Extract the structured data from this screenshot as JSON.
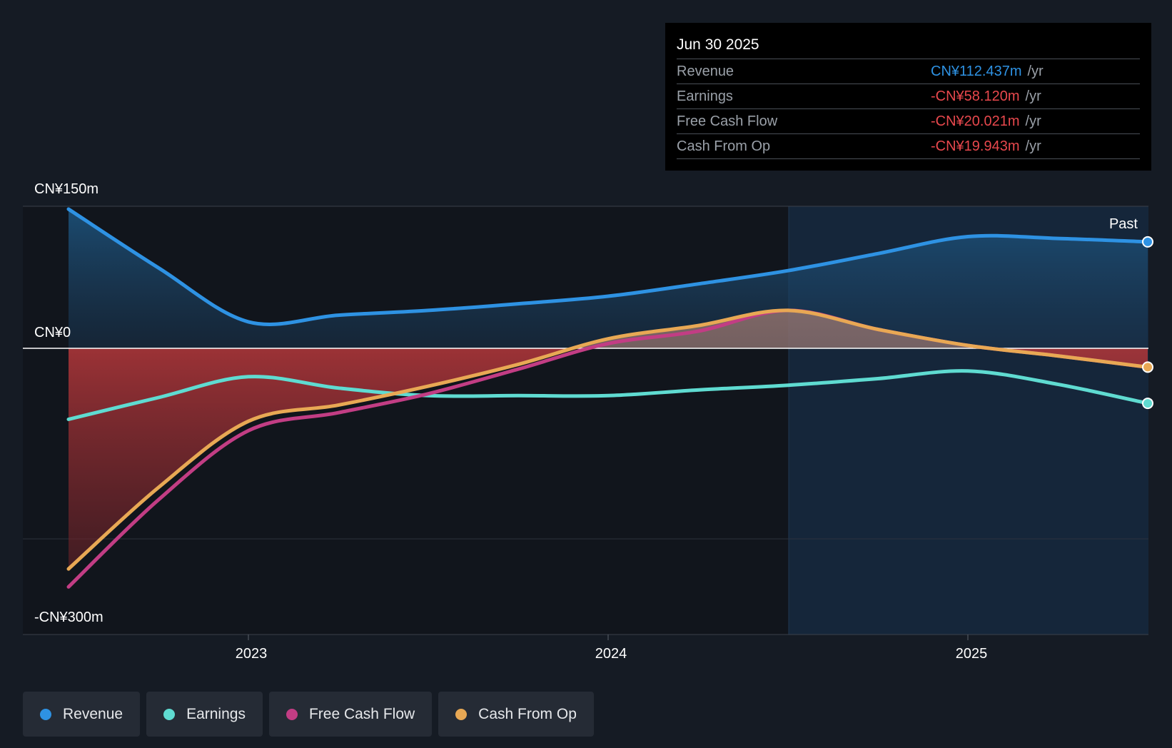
{
  "chart_data": {
    "type": "area",
    "currency_unit": "CN¥m",
    "ylim": [
      -300,
      150
    ],
    "y_tick_labels": [
      "CN¥150m",
      "CN¥0",
      "-CN¥300m"
    ],
    "x_tick_labels": [
      "2023",
      "2024",
      "2025"
    ],
    "past_label": "Past",
    "x": [
      2022.5,
      2022.75,
      2023.0,
      2023.25,
      2023.5,
      2023.75,
      2024.0,
      2024.25,
      2024.5,
      2024.75,
      2025.0,
      2025.25,
      2025.5
    ],
    "series": [
      {
        "name": "Revenue",
        "color": "#2e92e3",
        "values": [
          147,
          85,
          28,
          35,
          40,
          47,
          55,
          68,
          82,
          100,
          118,
          116,
          112.4
        ]
      },
      {
        "name": "Earnings",
        "color": "#5fdbd1",
        "values": [
          -75,
          -52,
          -30,
          -42,
          -50,
          -50,
          -50,
          -44,
          -39,
          -32,
          -24,
          -38,
          -58.1
        ]
      },
      {
        "name": "Free Cash Flow",
        "color": "#c23d84",
        "values": [
          -252,
          -160,
          -87,
          -68,
          -48,
          -22,
          5,
          18,
          40,
          20,
          3,
          -8,
          -20.0
        ]
      },
      {
        "name": "Cash From Op",
        "color": "#e8a854",
        "values": [
          -233,
          -147,
          -77,
          -60,
          -40,
          -17,
          10,
          24,
          40,
          20,
          3,
          -8,
          -19.9
        ]
      }
    ]
  },
  "tooltip": {
    "date": "Jun 30 2025",
    "rows": [
      {
        "label": "Revenue",
        "value": "CN¥112.437m",
        "unit": "/yr",
        "color": "#2e92e3"
      },
      {
        "label": "Earnings",
        "value": "-CN¥58.120m",
        "unit": "/yr",
        "color": "#e8484d"
      },
      {
        "label": "Free Cash Flow",
        "value": "-CN¥20.021m",
        "unit": "/yr",
        "color": "#e8484d"
      },
      {
        "label": "Cash From Op",
        "value": "-CN¥19.943m",
        "unit": "/yr",
        "color": "#e8484d"
      }
    ]
  },
  "legend": [
    {
      "label": "Revenue",
      "color": "#2e92e3"
    },
    {
      "label": "Earnings",
      "color": "#5fdbd1"
    },
    {
      "label": "Free Cash Flow",
      "color": "#c23d84"
    },
    {
      "label": "Cash From Op",
      "color": "#e8a854"
    }
  ]
}
